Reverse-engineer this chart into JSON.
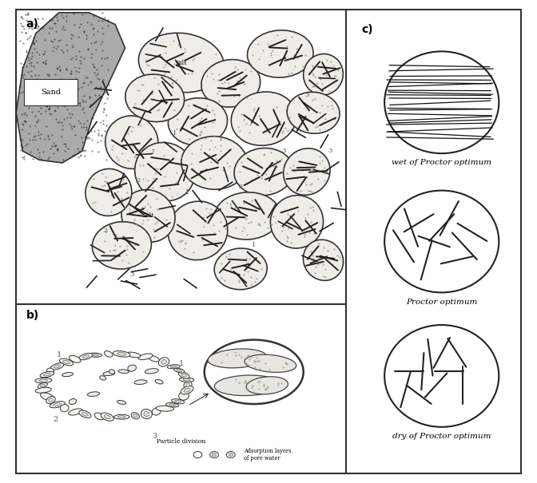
{
  "bg_color": "#f5f5f0",
  "border_color": "#333333",
  "panel_a_label": "a)",
  "panel_b_label": "b)",
  "panel_c_label": "c)",
  "sand_label": "Sand",
  "silt_label": "Silt",
  "c_labels": [
    "wet of Proctor optimum",
    "Proctor optimum",
    "dry of Proctor optimum"
  ],
  "b_legend_text": "Particle division",
  "b_legend2": "Adsorption layers\nof pore water",
  "aggregates": [
    [
      0.5,
      0.82,
      0.13,
      0.1,
      -10,
      true
    ],
    [
      0.65,
      0.75,
      0.09,
      0.08,
      15,
      false
    ],
    [
      0.8,
      0.85,
      0.1,
      0.08,
      5,
      false
    ],
    [
      0.93,
      0.78,
      0.06,
      0.07,
      -5,
      false
    ],
    [
      0.75,
      0.63,
      0.1,
      0.09,
      20,
      false
    ],
    [
      0.9,
      0.65,
      0.08,
      0.07,
      -10,
      false
    ],
    [
      0.55,
      0.62,
      0.09,
      0.08,
      10,
      false
    ],
    [
      0.42,
      0.7,
      0.09,
      0.08,
      -15,
      false
    ],
    [
      0.35,
      0.55,
      0.08,
      0.09,
      5,
      false
    ],
    [
      0.45,
      0.45,
      0.09,
      0.1,
      15,
      false
    ],
    [
      0.6,
      0.48,
      0.1,
      0.09,
      -5,
      false
    ],
    [
      0.75,
      0.45,
      0.09,
      0.08,
      10,
      false
    ],
    [
      0.88,
      0.45,
      0.07,
      0.08,
      -15,
      false
    ],
    [
      0.7,
      0.3,
      0.1,
      0.08,
      5,
      false
    ],
    [
      0.55,
      0.25,
      0.09,
      0.1,
      -10,
      false
    ],
    [
      0.4,
      0.3,
      0.08,
      0.09,
      20,
      true
    ],
    [
      0.28,
      0.38,
      0.07,
      0.08,
      -5,
      false
    ],
    [
      0.32,
      0.2,
      0.09,
      0.08,
      10,
      false
    ],
    [
      0.85,
      0.28,
      0.08,
      0.09,
      -5,
      false
    ],
    [
      0.93,
      0.15,
      0.06,
      0.07,
      15,
      false
    ],
    [
      0.68,
      0.12,
      0.08,
      0.07,
      5,
      false
    ]
  ]
}
